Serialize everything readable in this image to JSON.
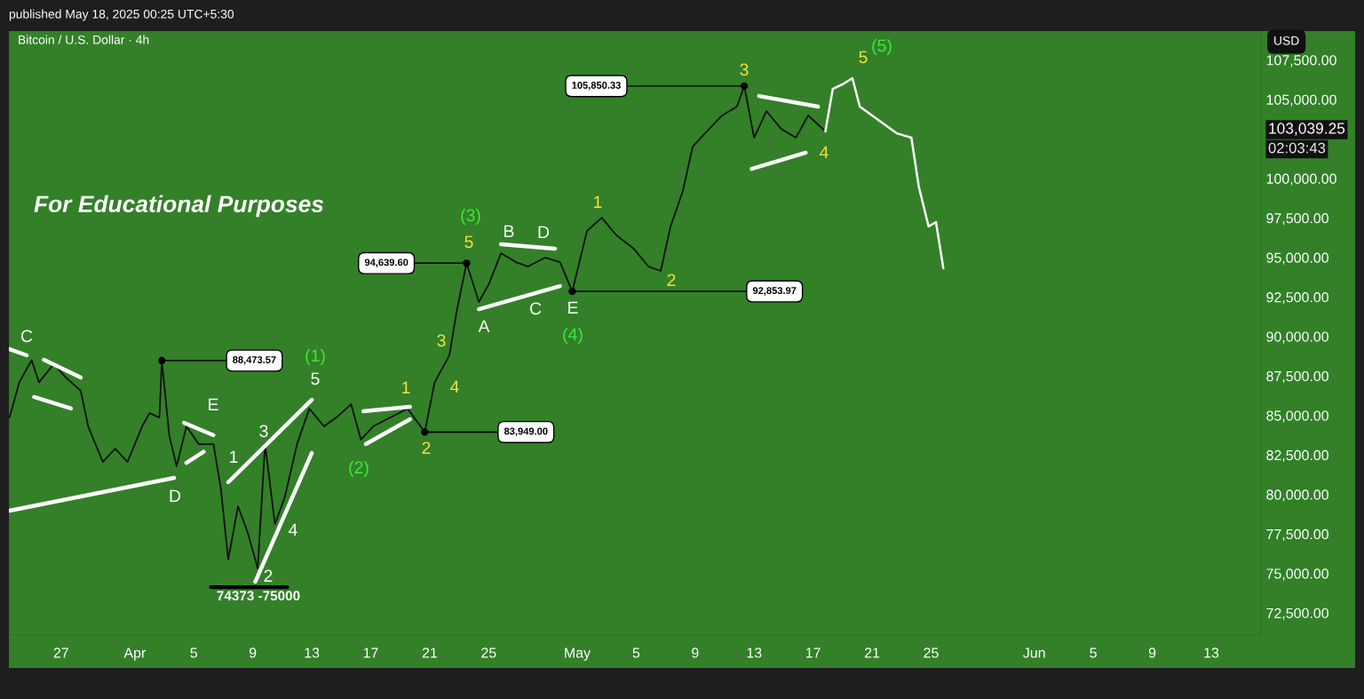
{
  "chart_data": {
    "type": "line",
    "title": "Bitcoin / U.S. Dollar · 4h",
    "subtitle": "published May 18, 2025 00:25 UTC+5:30",
    "xlim": [
      "2025-03-23T11:00",
      "2025-06-16T09:00"
    ],
    "ylim": [
      71100,
      109330
    ],
    "xticks": [
      {
        "value": "2025-03-27",
        "label": "27"
      },
      {
        "value": "2025-04-01",
        "label": "Apr"
      },
      {
        "value": "2025-04-05",
        "label": "5"
      },
      {
        "value": "2025-04-09",
        "label": "9"
      },
      {
        "value": "2025-04-13",
        "label": "13"
      },
      {
        "value": "2025-04-17",
        "label": "17"
      },
      {
        "value": "2025-04-21",
        "label": "21"
      },
      {
        "value": "2025-04-25",
        "label": "25"
      },
      {
        "value": "2025-05-01",
        "label": "May"
      },
      {
        "value": "2025-05-05",
        "label": "5"
      },
      {
        "value": "2025-05-09",
        "label": "9"
      },
      {
        "value": "2025-05-13",
        "label": "13"
      },
      {
        "value": "2025-05-17",
        "label": "17"
      },
      {
        "value": "2025-05-21",
        "label": "21"
      },
      {
        "value": "2025-05-25",
        "label": "25"
      },
      {
        "value": "2025-06-01",
        "label": "Jun"
      },
      {
        "value": "2025-06-05",
        "label": "5"
      },
      {
        "value": "2025-06-09",
        "label": "9"
      },
      {
        "value": "2025-06-13",
        "label": "13"
      }
    ],
    "yticks": [
      {
        "value": 72500,
        "label": "72,500.00"
      },
      {
        "value": 75000,
        "label": "75,000.00"
      },
      {
        "value": 77500,
        "label": "77,500.00"
      },
      {
        "value": 80000,
        "label": "80,000.00"
      },
      {
        "value": 82500,
        "label": "82,500.00"
      },
      {
        "value": 85000,
        "label": "85,000.00"
      },
      {
        "value": 87500,
        "label": "87,500.00"
      },
      {
        "value": 90000,
        "label": "90,000.00"
      },
      {
        "value": 92500,
        "label": "92,500.00"
      },
      {
        "value": 95000,
        "label": "95,000.00"
      },
      {
        "value": 97500,
        "label": "97,500.00"
      },
      {
        "value": 100000,
        "label": "100,000.00"
      },
      {
        "value": 105000,
        "label": "105,000.00"
      },
      {
        "value": 107500,
        "label": "107,500.00"
      }
    ],
    "grid": false,
    "legend": false,
    "series": [
      {
        "color": "#111111",
        "x": [
          "2025-03-23T12:00",
          "2025-03-24T04:00",
          "2025-03-25T00:00",
          "2025-03-25T12:00",
          "2025-03-26T12:00",
          "2025-03-27T08:00",
          "2025-03-28T08:00",
          "2025-03-28T20:00",
          "2025-03-29T20:00",
          "2025-03-30T16:00",
          "2025-03-31T12:00",
          "2025-04-01T12:00",
          "2025-04-02T00:00",
          "2025-04-02T16:00",
          "2025-04-02T20:00",
          "2025-04-03T08:00",
          "2025-04-03T20:00",
          "2025-04-04T12:00",
          "2025-04-05T08:00",
          "2025-04-06T08:00",
          "2025-04-06T20:00",
          "2025-04-07T08:00",
          "2025-04-08T00:00",
          "2025-04-08T16:00",
          "2025-04-09T08:00",
          "2025-04-09T20:00",
          "2025-04-10T12:00",
          "2025-04-11T04:00",
          "2025-04-12T00:00",
          "2025-04-12T20:00",
          "2025-04-13T20:00",
          "2025-04-14T16:00",
          "2025-04-15T16:00",
          "2025-04-16T08:00",
          "2025-04-17T04:00",
          "2025-04-18T08:00",
          "2025-04-19T12:00",
          "2025-04-20T16:00",
          "2025-04-21T08:00",
          "2025-04-22T08:00",
          "2025-04-22T20:00",
          "2025-04-23T12:00",
          "2025-04-24T08:00",
          "2025-04-25T00:00",
          "2025-04-25T20:00",
          "2025-04-26T20:00",
          "2025-04-27T16:00",
          "2025-04-28T20:00",
          "2025-04-29T20:00",
          "2025-04-30T16:00",
          "2025-05-01T16:00",
          "2025-05-02T16:00",
          "2025-05-03T16:00",
          "2025-05-04T20:00",
          "2025-05-05T20:00",
          "2025-05-06T16:00",
          "2025-05-07T08:00",
          "2025-05-08T04:00",
          "2025-05-08T20:00",
          "2025-05-09T16:00",
          "2025-05-10T20:00",
          "2025-05-11T20:00",
          "2025-05-12T08:00",
          "2025-05-13T00:00",
          "2025-05-13T20:00",
          "2025-05-14T20:00",
          "2025-05-15T20:00",
          "2025-05-16T16:00",
          "2025-05-17T20:00"
        ],
        "values": [
          84870,
          87100,
          88500,
          87100,
          88250,
          87400,
          86560,
          84310,
          82060,
          82900,
          82060,
          84310,
          85150,
          84870,
          88470,
          83750,
          81780,
          84310,
          83180,
          83180,
          80370,
          75880,
          79250,
          77560,
          75320,
          83180,
          78130,
          79810,
          83180,
          85430,
          84310,
          84870,
          85710,
          83470,
          84310,
          84870,
          85430,
          83950,
          87100,
          88800,
          91620,
          94640,
          92180,
          93300,
          95270,
          94710,
          94430,
          94990,
          94710,
          92850,
          96680,
          97520,
          96400,
          95560,
          94430,
          94150,
          96960,
          99210,
          102020,
          102860,
          103990,
          104550,
          105850,
          102580,
          104270,
          103140,
          102580,
          103990,
          102980
        ]
      },
      {
        "color": "#ffffff",
        "x": [
          "2025-05-17T20:00",
          "2025-05-18T08:00",
          "2025-05-19T00:00",
          "2025-05-19T16:00",
          "2025-05-20T04:00",
          "2025-05-20T20:00",
          "2025-05-21T20:00",
          "2025-05-22T16:00",
          "2025-05-23T16:00",
          "2025-05-24T04:00",
          "2025-05-24T20:00",
          "2025-05-25T08:00",
          "2025-05-25T20:00"
        ],
        "values": [
          102980,
          105670,
          105960,
          106350,
          104550,
          104100,
          103430,
          102860,
          102580,
          99490,
          96960,
          97240,
          94320
        ]
      },
      {
        "color": "#ffffff",
        "x": [
          "2025-03-23T12:00",
          "2025-04-03T16:00"
        ],
        "values": [
          78970,
          81050
        ]
      },
      {
        "color": "#ffffff",
        "x": [
          "2025-03-23T12:00",
          "2025-03-24T16:00"
        ],
        "values": [
          89200,
          88810
        ]
      },
      {
        "color": "#ffffff",
        "x": [
          "2025-03-25T20:00",
          "2025-03-28T08:00"
        ],
        "values": [
          88530,
          87400
        ]
      },
      {
        "color": "#ffffff",
        "x": [
          "2025-03-25T04:00",
          "2025-03-27T16:00"
        ],
        "values": [
          86170,
          85440
        ]
      },
      {
        "color": "#ffffff",
        "x": [
          "2025-04-04T08:00",
          "2025-04-06T08:00"
        ],
        "values": [
          84540,
          83750
        ]
      },
      {
        "color": "#ffffff",
        "x": [
          "2025-04-04T12:00",
          "2025-04-05T16:00"
        ],
        "values": [
          82000,
          82700
        ]
      },
      {
        "color": "#ffffff",
        "x": [
          "2025-04-07T08:00",
          "2025-04-13T00:00"
        ],
        "values": [
          80770,
          85990
        ]
      },
      {
        "color": "#ffffff",
        "x": [
          "2025-04-09T04:00",
          "2025-04-13T00:00"
        ],
        "values": [
          74470,
          82620
        ]
      },
      {
        "color": "#ffffff",
        "x": [
          "2025-04-16T12:00",
          "2025-04-19T16:00"
        ],
        "values": [
          85270,
          85550
        ]
      },
      {
        "color": "#ffffff",
        "x": [
          "2025-04-16T16:00",
          "2025-04-19T16:00"
        ],
        "values": [
          83190,
          84760
        ]
      },
      {
        "color": "#ffffff",
        "x": [
          "2025-04-24T08:00",
          "2025-04-29T20:00"
        ],
        "values": [
          91730,
          93190
        ]
      },
      {
        "color": "#ffffff",
        "x": [
          "2025-04-25T20:00",
          "2025-04-29T12:00"
        ],
        "values": [
          95840,
          95560
        ]
      },
      {
        "color": "#ffffff",
        "x": [
          "2025-05-13T08:00",
          "2025-05-17T08:00"
        ],
        "values": [
          105220,
          104550
        ]
      },
      {
        "color": "#ffffff",
        "x": [
          "2025-05-12T20:00",
          "2025-05-16T12:00"
        ],
        "values": [
          100610,
          101630
        ]
      },
      {
        "color": "#000000",
        "x": [
          "2025-04-06T04:00",
          "2025-04-11T08:00"
        ],
        "values": [
          74130,
          74130
        ]
      }
    ],
    "annotations": [
      "For Educational Purposes",
      "USD",
      "02:03:43",
      {
        "text": "88,473.57",
        "x": "2025-04-02T20:00",
        "y": 88473.57
      },
      {
        "text": "83,949.00",
        "x": "2025-04-20T16:00",
        "y": 83949.0
      },
      {
        "text": "94,639.60",
        "x": "2025-04-23T12:00",
        "y": 94639.6
      },
      {
        "text": "92,853.97",
        "x": "2025-04-30T16:00",
        "y": 92853.97
      },
      {
        "text": "105,850.33",
        "x": "2025-05-12T08:00",
        "y": 105850.33
      },
      "103,039.25",
      "74373 -75000",
      "C",
      "E",
      "D",
      "1",
      "3",
      "2",
      "4",
      "5",
      "(1)",
      "(2)",
      "1",
      "2",
      "3",
      "4",
      "5",
      "(3)",
      "A",
      "B",
      "C",
      "D",
      "E",
      "(4)",
      "1",
      "2",
      "3",
      "4",
      "5",
      "(5)"
    ]
  }
}
